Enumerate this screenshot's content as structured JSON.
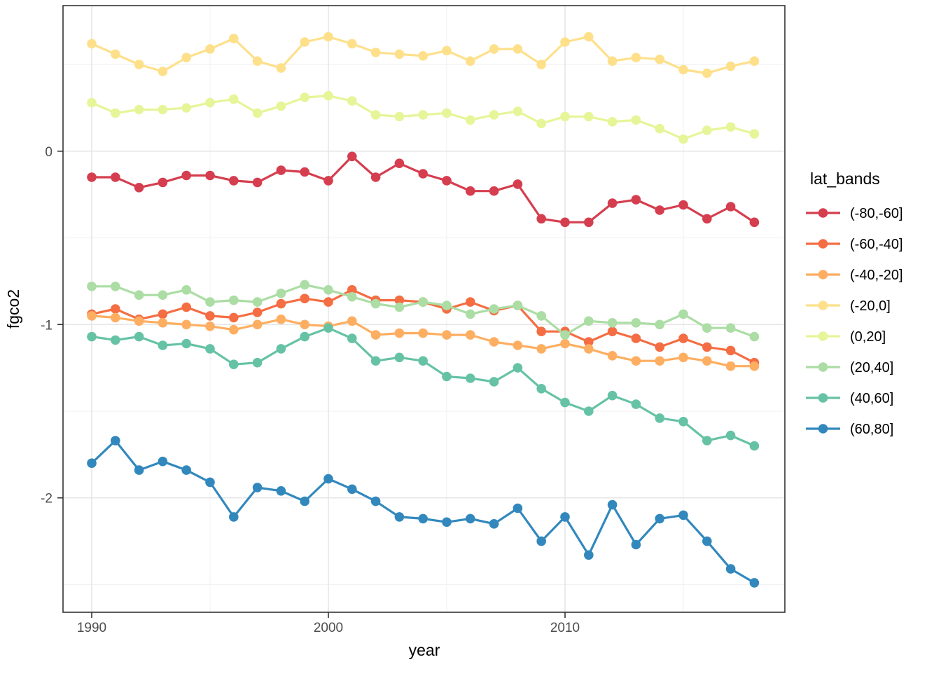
{
  "chart_data": {
    "type": "line",
    "title": "",
    "xlabel": "year",
    "ylabel": "fgco2",
    "legend_title": "lat_bands",
    "grid": true,
    "legend_position": "right",
    "background": "#ffffff",
    "panel_border_color": "#333333",
    "major_grid_color": "#e6e6e6",
    "minor_grid_color": "#f2f2f2",
    "tick_label_color": "#4d4d4d",
    "xlim": [
      1988.787,
      2019.29
    ],
    "ylim": [
      -2.66,
      0.84
    ],
    "x_ticks": [
      1990,
      2000,
      2010
    ],
    "x_tick_labels": [
      "1990",
      "2000",
      "2010"
    ],
    "x_minor_ticks": [
      1995,
      2005,
      2015
    ],
    "y_ticks": [
      0,
      -1,
      -2
    ],
    "y_tick_labels": [
      "0",
      "-1",
      "-2"
    ],
    "y_minor_ticks": [
      0.5,
      -0.5,
      -1.5,
      -2.5
    ],
    "x": [
      1990,
      1991,
      1992,
      1993,
      1994,
      1995,
      1996,
      1997,
      1998,
      1999,
      2000,
      2001,
      2002,
      2003,
      2004,
      2005,
      2006,
      2007,
      2008,
      2009,
      2010,
      2011,
      2012,
      2013,
      2014,
      2015,
      2016,
      2017,
      2018
    ],
    "series": [
      {
        "name": "(-80,-60]",
        "color": "#d53e4f",
        "values": [
          -0.15,
          -0.15,
          -0.21,
          -0.18,
          -0.14,
          -0.14,
          -0.17,
          -0.18,
          -0.11,
          -0.12,
          -0.17,
          -0.03,
          -0.15,
          -0.07,
          -0.13,
          -0.17,
          -0.23,
          -0.23,
          -0.19,
          -0.39,
          -0.41,
          -0.41,
          -0.3,
          -0.28,
          -0.34,
          -0.31,
          -0.39,
          -0.32,
          -0.41
        ]
      },
      {
        "name": "(-60,-40]",
        "color": "#f46d43",
        "values": [
          -0.94,
          -0.91,
          -0.97,
          -0.94,
          -0.9,
          -0.95,
          -0.96,
          -0.93,
          -0.88,
          -0.85,
          -0.87,
          -0.8,
          -0.86,
          -0.86,
          -0.87,
          -0.91,
          -0.87,
          -0.92,
          -0.89,
          -1.04,
          -1.04,
          -1.1,
          -1.04,
          -1.08,
          -1.13,
          -1.08,
          -1.13,
          -1.15,
          -1.22
        ]
      },
      {
        "name": "(-40,-20]",
        "color": "#fdae61",
        "values": [
          -0.95,
          -0.96,
          -0.98,
          -0.99,
          -1.0,
          -1.01,
          -1.03,
          -1.0,
          -0.97,
          -1.0,
          -1.01,
          -0.98,
          -1.06,
          -1.05,
          -1.05,
          -1.06,
          -1.06,
          -1.1,
          -1.12,
          -1.14,
          -1.11,
          -1.14,
          -1.18,
          -1.21,
          -1.21,
          -1.19,
          -1.21,
          -1.24,
          -1.24
        ]
      },
      {
        "name": "(-20,0]",
        "color": "#fee08b",
        "values": [
          0.62,
          0.56,
          0.5,
          0.46,
          0.54,
          0.59,
          0.65,
          0.52,
          0.48,
          0.63,
          0.66,
          0.62,
          0.57,
          0.56,
          0.55,
          0.58,
          0.52,
          0.59,
          0.59,
          0.5,
          0.63,
          0.66,
          0.52,
          0.54,
          0.53,
          0.47,
          0.45,
          0.49,
          0.52
        ]
      },
      {
        "name": "(0,20]",
        "color": "#e6f598",
        "values": [
          0.28,
          0.22,
          0.24,
          0.24,
          0.25,
          0.28,
          0.3,
          0.22,
          0.26,
          0.31,
          0.32,
          0.29,
          0.21,
          0.2,
          0.21,
          0.22,
          0.18,
          0.21,
          0.23,
          0.16,
          0.2,
          0.2,
          0.17,
          0.18,
          0.13,
          0.07,
          0.12,
          0.14,
          0.1
        ]
      },
      {
        "name": "(20,40]",
        "color": "#abdda4",
        "values": [
          -0.78,
          -0.78,
          -0.83,
          -0.83,
          -0.8,
          -0.87,
          -0.86,
          -0.87,
          -0.82,
          -0.77,
          -0.8,
          -0.84,
          -0.88,
          -0.9,
          -0.87,
          -0.89,
          -0.94,
          -0.91,
          -0.89,
          -0.95,
          -1.06,
          -0.98,
          -0.99,
          -0.99,
          -1.0,
          -0.94,
          -1.02,
          -1.02,
          -1.07
        ]
      },
      {
        "name": "(40,60]",
        "color": "#66c2a5",
        "values": [
          -1.07,
          -1.09,
          -1.07,
          -1.12,
          -1.11,
          -1.14,
          -1.23,
          -1.22,
          -1.14,
          -1.07,
          -1.02,
          -1.08,
          -1.21,
          -1.19,
          -1.21,
          -1.3,
          -1.31,
          -1.33,
          -1.25,
          -1.37,
          -1.45,
          -1.5,
          -1.41,
          -1.46,
          -1.54,
          -1.56,
          -1.67,
          -1.64,
          -1.7
        ]
      },
      {
        "name": "(60,80]",
        "color": "#3288bd",
        "values": [
          -1.8,
          -1.67,
          -1.84,
          -1.79,
          -1.84,
          -1.91,
          -2.11,
          -1.94,
          -1.96,
          -2.02,
          -1.89,
          -1.95,
          -2.02,
          -2.11,
          -2.12,
          -2.14,
          -2.12,
          -2.15,
          -2.06,
          -2.25,
          -2.11,
          -2.33,
          -2.04,
          -2.27,
          -2.12,
          -2.1,
          -2.25,
          -2.41,
          -2.49
        ]
      }
    ]
  }
}
